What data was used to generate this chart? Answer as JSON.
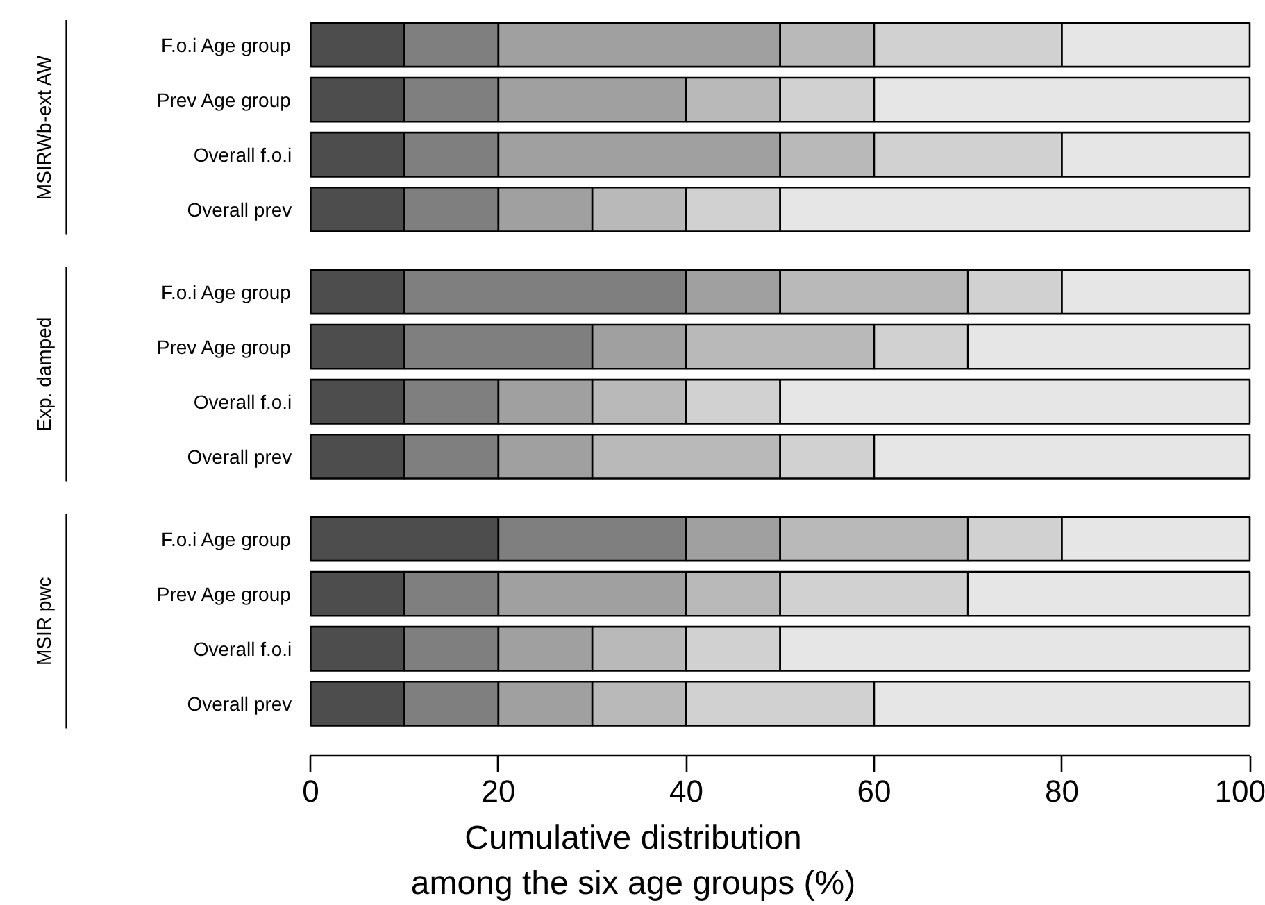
{
  "chart_data": {
    "type": "bar",
    "orientation": "horizontal",
    "stacked": true,
    "xlabel": "Cumulative distribution\namong the six age groups (%)",
    "categories": [
      "F.o.i Age group",
      "Prev Age group",
      "Overall f.o.i",
      "Overall prev",
      "F.o.i Age group",
      "Prev Age group",
      "Overall f.o.i",
      "Overall prev",
      "F.o.i Age group",
      "Prev Age group",
      "Overall f.o.i",
      "Overall prev"
    ],
    "annotations": [
      "MSIRWb-ext AW",
      "Exp. damped",
      "MSIR pwc"
    ],
    "xlim": [
      0,
      100
    ],
    "xticks": [
      0,
      20,
      40,
      60,
      80,
      100
    ],
    "grid": false,
    "series": [
      {
        "color": "#4d4d4d",
        "values": [
          10,
          10,
          10,
          10,
          10,
          10,
          10,
          10,
          20,
          10,
          10,
          10
        ]
      },
      {
        "color": "#7f7f7f",
        "values": [
          10,
          10,
          10,
          10,
          30,
          20,
          10,
          10,
          20,
          10,
          10,
          10
        ]
      },
      {
        "color": "#a0a0a0",
        "values": [
          30,
          20,
          30,
          10,
          10,
          10,
          10,
          10,
          10,
          20,
          10,
          10
        ]
      },
      {
        "color": "#b9b9b9",
        "values": [
          10,
          10,
          10,
          10,
          20,
          20,
          10,
          20,
          20,
          10,
          10,
          10
        ]
      },
      {
        "color": "#d1d1d1",
        "values": [
          20,
          10,
          20,
          10,
          10,
          10,
          10,
          10,
          10,
          20,
          10,
          20
        ]
      },
      {
        "color": "#e6e6e6",
        "values": [
          20,
          40,
          20,
          50,
          20,
          30,
          50,
          40,
          20,
          30,
          50,
          40
        ]
      }
    ]
  }
}
